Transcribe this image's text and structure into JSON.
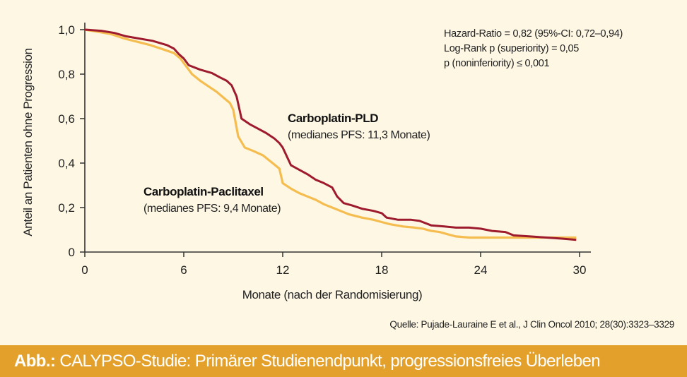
{
  "stats": {
    "line1": "Hazard-Ratio = 0,82 (95%-CI: 0,72–0,94)",
    "line2": "Log-Rank p (superiority) = 0,05",
    "line3": "p (noninferiority) ≤ 0,001"
  },
  "source": "Quelle: Pujade-Lauraine E et al., J Clin Oncol 2010; 28(30):3323–3329",
  "caption": {
    "label": "Abb.:",
    "text": "CALYPSO-Studie: Primärer Studienendpunkt, progressionsfreies Überleben"
  },
  "chart_data": {
    "type": "line",
    "title": "",
    "xlabel": "Monate (nach der Randomisierung)",
    "ylabel": "Anteil an Patienten ohne Progression",
    "xlim": [
      0,
      30
    ],
    "ylim": [
      0,
      1.0
    ],
    "xticks": [
      0,
      6,
      12,
      18,
      24,
      30
    ],
    "xtick_labels": [
      "0",
      "6",
      "12",
      "18",
      "24",
      "30"
    ],
    "yticks": [
      0,
      0.2,
      0.4,
      0.6,
      0.8,
      1.0
    ],
    "ytick_labels": [
      "0",
      "0,2",
      "0,4",
      "0,6",
      "0,8",
      "1,0"
    ],
    "grid": false,
    "colors": {
      "pld": "#9e1b2e",
      "paclitaxel": "#f5bd4f",
      "axis": "#333333"
    },
    "series": [
      {
        "name": "Carboplatin-PLD",
        "subtitle": "(medianes PFS: 11,3 Monate)",
        "color_key": "pld",
        "x": [
          0,
          1,
          1.8,
          2.5,
          3.3,
          4.1,
          5.0,
          5.4,
          5.7,
          6.0,
          6.3,
          7.0,
          7.7,
          8.2,
          8.6,
          8.9,
          9.2,
          9.5,
          10.0,
          10.5,
          11.0,
          11.5,
          11.8,
          12.0,
          12.5,
          13.0,
          13.5,
          14.0,
          14.5,
          15.0,
          15.3,
          15.7,
          16.2,
          16.8,
          17.5,
          18.0,
          18.3,
          19.0,
          19.8,
          20.3,
          21.0,
          21.8,
          22.5,
          23.3,
          24.0,
          24.7,
          25.5,
          26.0,
          27.0,
          28.0,
          29.0,
          29.8
        ],
        "y": [
          1.0,
          0.995,
          0.985,
          0.97,
          0.96,
          0.95,
          0.93,
          0.915,
          0.89,
          0.87,
          0.84,
          0.82,
          0.805,
          0.785,
          0.77,
          0.75,
          0.7,
          0.6,
          0.575,
          0.555,
          0.535,
          0.51,
          0.49,
          0.47,
          0.39,
          0.37,
          0.35,
          0.325,
          0.31,
          0.29,
          0.25,
          0.22,
          0.21,
          0.195,
          0.185,
          0.175,
          0.155,
          0.145,
          0.145,
          0.14,
          0.12,
          0.115,
          0.11,
          0.11,
          0.105,
          0.095,
          0.09,
          0.075,
          0.07,
          0.065,
          0.06,
          0.055
        ]
      },
      {
        "name": "Carboplatin-Paclitaxel",
        "subtitle": "(medianes PFS: 9,4 Monate)",
        "color_key": "paclitaxel",
        "x": [
          0,
          0.8,
          1.6,
          2.4,
          3.2,
          4.0,
          4.8,
          5.4,
          5.8,
          6.1,
          6.5,
          7.0,
          7.5,
          8.0,
          8.4,
          8.8,
          9.0,
          9.3,
          9.7,
          10.2,
          10.8,
          11.3,
          11.8,
          12.0,
          12.5,
          13.0,
          13.5,
          14.0,
          14.5,
          15.0,
          15.5,
          16.0,
          16.8,
          17.5,
          18.0,
          18.5,
          19.3,
          20.0,
          20.5,
          21.0,
          21.5,
          22.0,
          22.5,
          23.3,
          24.0,
          25.0,
          26.0,
          27.0,
          28.0,
          29.0,
          29.8
        ],
        "y": [
          1.0,
          0.99,
          0.98,
          0.96,
          0.945,
          0.93,
          0.91,
          0.895,
          0.87,
          0.84,
          0.8,
          0.77,
          0.745,
          0.72,
          0.695,
          0.67,
          0.64,
          0.52,
          0.47,
          0.455,
          0.435,
          0.405,
          0.375,
          0.31,
          0.285,
          0.265,
          0.25,
          0.235,
          0.215,
          0.2,
          0.185,
          0.17,
          0.155,
          0.145,
          0.135,
          0.125,
          0.115,
          0.11,
          0.105,
          0.095,
          0.09,
          0.08,
          0.07,
          0.065,
          0.065,
          0.065,
          0.065,
          0.065,
          0.065,
          0.065,
          0.065
        ]
      }
    ]
  }
}
